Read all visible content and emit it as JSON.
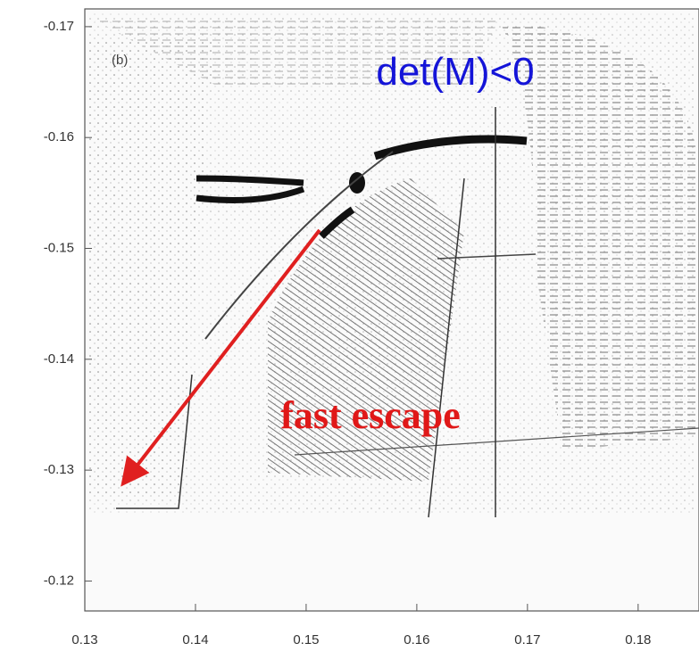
{
  "chart_data": {
    "type": "scatter",
    "panel_label": "(b)",
    "annotations": [
      "det(M)<0",
      "fast escape"
    ],
    "xlim": [
      0.13,
      0.1855
    ],
    "xticks": [
      0.13,
      0.14,
      0.15,
      0.16,
      0.17,
      0.18
    ],
    "ylim": [
      -0.1173,
      -0.1716
    ],
    "yticks": [
      -0.17,
      -0.16,
      -0.15,
      -0.14,
      -0.13,
      -0.12
    ]
  }
}
